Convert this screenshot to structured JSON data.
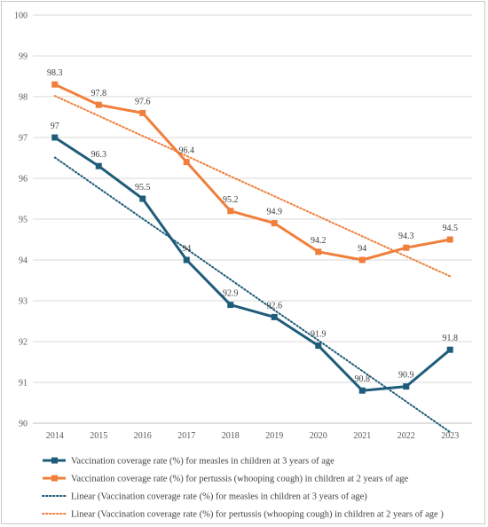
{
  "chart_data": {
    "type": "line",
    "title": "",
    "xlabel": "",
    "ylabel": "",
    "ylim": [
      90,
      100
    ],
    "y_ticks": [
      90,
      91,
      92,
      93,
      94,
      95,
      96,
      97,
      98,
      99,
      100
    ],
    "categories": [
      "2014",
      "2015",
      "2016",
      "2017",
      "2018",
      "2019",
      "2020",
      "2021",
      "2022",
      "2023"
    ],
    "grid": "horizontal",
    "legend_position": "bottom",
    "series": [
      {
        "name": "Vaccination coverage rate (%) for measles in children at 3 years of age",
        "values": [
          97,
          96.3,
          95.5,
          94,
          92.9,
          92.6,
          91.9,
          90.8,
          90.9,
          91.8
        ],
        "color": "#1f5c7a",
        "style": "solid",
        "marker": "square",
        "data_labels": true
      },
      {
        "name": "Vaccination coverage rate (%) for pertussis (whooping cough) in children at 2 years of age",
        "values": [
          98.3,
          97.8,
          97.6,
          96.4,
          95.2,
          94.9,
          94.2,
          94,
          94.3,
          94.5
        ],
        "color": "#f07f3c",
        "style": "solid",
        "marker": "square",
        "data_labels": true
      },
      {
        "name": "Linear (Vaccination coverage rate (%) for measles in children at 3 years of age)",
        "values": [
          96.51,
          95.76,
          95.01,
          94.27,
          93.52,
          92.77,
          92.03,
          91.28,
          90.53,
          89.78
        ],
        "color": "#1f5c7a",
        "style": "dotted",
        "marker": "none",
        "data_labels": false
      },
      {
        "name": "Linear (Vaccination coverage rate (%) for pertussis (whooping cough) in children at 2 years of age )",
        "values": [
          98.02,
          97.53,
          97.04,
          96.55,
          96.05,
          95.56,
          95.07,
          94.58,
          94.09,
          93.6
        ],
        "color": "#f07f3c",
        "style": "dotted",
        "marker": "none",
        "data_labels": false
      }
    ]
  }
}
